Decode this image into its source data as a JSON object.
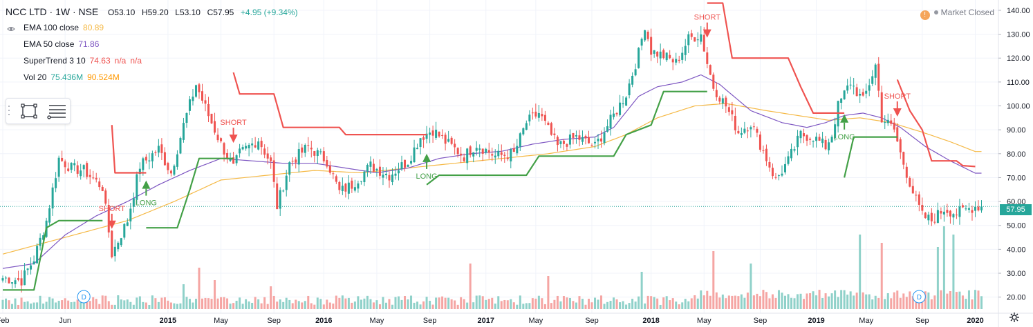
{
  "header": {
    "symbol": "NCC LTD · 1W · NSE",
    "open": "O53.10",
    "high": "H59.20",
    "low": "L53.10",
    "close": "C57.95",
    "change": "+4.95 (+9.34%)"
  },
  "legend": {
    "ema100": {
      "label": "EMA 100 close",
      "value": "80.89",
      "color": "#f5b946"
    },
    "ema50": {
      "label": "EMA 50 close",
      "value": "71.86",
      "color": "#7e57c2"
    },
    "supertrend": {
      "label": "SuperTrend 3 10",
      "value": "74.63",
      "v2": "n/a",
      "v3": "n/a",
      "color": "#ef5350"
    },
    "vol": {
      "label": "Vol 20",
      "value": "75.436M",
      "value2": "90.524M",
      "color1": "#26a69a",
      "color2": "#ff9800"
    }
  },
  "market_status": "Market Closed",
  "last_price_label": "57.95",
  "colors": {
    "up": "#26a69a",
    "down": "#ef5350",
    "vol_up": "#8fd1c9",
    "vol_down": "#f5a5a3",
    "long": "#43a047",
    "short": "#ef5350",
    "grid": "#f0f3fa"
  },
  "icons": [
    "eye-icon",
    "warning-icon",
    "rectangle-tool-icon",
    "fib-tool-icon",
    "settings-icon",
    "dividend-marker-icon"
  ],
  "chart_data": {
    "type": "candlestick",
    "y_axis": {
      "min": 15,
      "max": 142,
      "ticks": [
        20,
        30,
        40,
        50,
        60,
        70,
        80,
        90,
        100,
        110,
        120,
        130,
        140
      ],
      "position": "right"
    },
    "x_axis": {
      "labels": [
        "Feb",
        "Jun",
        "2015",
        "May",
        "Sep",
        "2016",
        "May",
        "Sep",
        "2017",
        "May",
        "Sep",
        "2018",
        "May",
        "Sep",
        "2019",
        "May",
        "Sep",
        "2020"
      ],
      "label_positions": [
        0,
        20,
        53,
        70,
        87,
        103,
        120,
        137,
        155,
        171,
        189,
        208,
        225,
        243,
        261,
        277,
        295,
        312
      ]
    },
    "weeks": 315,
    "close_anchors": [
      [
        0,
        28
      ],
      [
        6,
        27
      ],
      [
        10,
        36
      ],
      [
        14,
        52
      ],
      [
        18,
        78
      ],
      [
        22,
        74
      ],
      [
        26,
        73
      ],
      [
        32,
        66
      ],
      [
        35,
        38
      ],
      [
        40,
        52
      ],
      [
        44,
        75
      ],
      [
        50,
        82
      ],
      [
        54,
        72
      ],
      [
        58,
        92
      ],
      [
        62,
        109
      ],
      [
        66,
        96
      ],
      [
        70,
        84
      ],
      [
        74,
        74
      ],
      [
        76,
        80
      ],
      [
        82,
        86
      ],
      [
        86,
        76
      ],
      [
        88,
        58
      ],
      [
        92,
        76
      ],
      [
        98,
        83
      ],
      [
        104,
        77
      ],
      [
        108,
        64
      ],
      [
        112,
        67
      ],
      [
        118,
        75
      ],
      [
        124,
        71
      ],
      [
        130,
        77
      ],
      [
        134,
        87
      ],
      [
        138,
        90
      ],
      [
        142,
        85
      ],
      [
        148,
        79
      ],
      [
        152,
        84
      ],
      [
        158,
        79
      ],
      [
        164,
        80
      ],
      [
        168,
        93
      ],
      [
        172,
        97
      ],
      [
        178,
        83
      ],
      [
        184,
        87
      ],
      [
        190,
        83
      ],
      [
        196,
        96
      ],
      [
        200,
        105
      ],
      [
        204,
        122
      ],
      [
        206,
        134
      ],
      [
        208,
        123
      ],
      [
        212,
        121
      ],
      [
        216,
        118
      ],
      [
        220,
        128
      ],
      [
        224,
        130
      ],
      [
        226,
        118
      ],
      [
        228,
        108
      ],
      [
        232,
        100
      ],
      [
        236,
        89
      ],
      [
        240,
        93
      ],
      [
        244,
        81
      ],
      [
        248,
        69
      ],
      [
        252,
        77
      ],
      [
        256,
        88
      ],
      [
        260,
        87
      ],
      [
        264,
        83
      ],
      [
        266,
        88
      ],
      [
        268,
        100
      ],
      [
        272,
        110
      ],
      [
        276,
        102
      ],
      [
        280,
        117
      ],
      [
        282,
        95
      ],
      [
        286,
        90
      ],
      [
        288,
        80
      ],
      [
        292,
        64
      ],
      [
        295,
        54
      ],
      [
        298,
        52
      ],
      [
        302,
        57
      ],
      [
        306,
        55
      ],
      [
        312,
        58
      ]
    ],
    "ema50_anchors": [
      [
        0,
        32
      ],
      [
        10,
        34
      ],
      [
        20,
        46
      ],
      [
        30,
        54
      ],
      [
        40,
        60
      ],
      [
        50,
        67
      ],
      [
        60,
        73
      ],
      [
        70,
        78
      ],
      [
        80,
        77
      ],
      [
        90,
        76
      ],
      [
        100,
        76
      ],
      [
        110,
        74
      ],
      [
        120,
        72
      ],
      [
        130,
        74
      ],
      [
        140,
        78
      ],
      [
        150,
        80
      ],
      [
        160,
        81
      ],
      [
        170,
        84
      ],
      [
        180,
        86
      ],
      [
        190,
        87
      ],
      [
        196,
        91
      ],
      [
        204,
        104
      ],
      [
        210,
        108
      ],
      [
        218,
        110
      ],
      [
        224,
        113
      ],
      [
        230,
        109
      ],
      [
        240,
        98
      ],
      [
        250,
        93
      ],
      [
        258,
        91
      ],
      [
        264,
        93
      ],
      [
        270,
        96
      ],
      [
        276,
        97
      ],
      [
        282,
        95
      ],
      [
        288,
        91
      ],
      [
        296,
        83
      ],
      [
        304,
        77
      ],
      [
        312,
        71.86
      ]
    ],
    "ema100_anchors": [
      [
        0,
        38
      ],
      [
        20,
        45
      ],
      [
        40,
        52
      ],
      [
        55,
        60
      ],
      [
        70,
        69
      ],
      [
        85,
        71
      ],
      [
        100,
        73
      ],
      [
        115,
        72
      ],
      [
        130,
        74
      ],
      [
        145,
        76
      ],
      [
        160,
        78
      ],
      [
        175,
        80
      ],
      [
        190,
        83
      ],
      [
        200,
        88
      ],
      [
        210,
        95
      ],
      [
        222,
        100
      ],
      [
        232,
        101
      ],
      [
        245,
        98
      ],
      [
        255,
        96
      ],
      [
        265,
        94
      ],
      [
        275,
        95
      ],
      [
        285,
        93
      ],
      [
        295,
        89
      ],
      [
        304,
        85
      ],
      [
        312,
        80.89
      ]
    ],
    "supertrend_segments": [
      {
        "dir": "up",
        "points": [
          [
            0,
            23
          ],
          [
            10,
            23
          ],
          [
            14,
            49
          ],
          [
            18,
            52
          ],
          [
            32,
            52
          ]
        ]
      },
      {
        "dir": "down",
        "points": [
          [
            35,
            92
          ],
          [
            36,
            72
          ],
          [
            46,
            72
          ]
        ]
      },
      {
        "dir": "up",
        "points": [
          [
            46,
            49
          ],
          [
            56,
            49
          ],
          [
            60,
            65
          ],
          [
            63,
            78
          ],
          [
            74,
            78
          ]
        ]
      },
      {
        "dir": "down",
        "points": [
          [
            74,
            114
          ],
          [
            76,
            105
          ],
          [
            87,
            105
          ],
          [
            90,
            91
          ],
          [
            108,
            91
          ],
          [
            110,
            88
          ],
          [
            136,
            88
          ]
        ]
      },
      {
        "dir": "up",
        "points": [
          [
            136,
            67
          ],
          [
            140,
            71
          ],
          [
            168,
            71
          ],
          [
            172,
            79
          ],
          [
            196,
            79
          ],
          [
            200,
            88
          ],
          [
            208,
            92
          ],
          [
            212,
            106
          ],
          [
            226,
            106
          ]
        ]
      },
      {
        "dir": "down",
        "points": [
          [
            226,
            143
          ],
          [
            231,
            143
          ],
          [
            234,
            120
          ],
          [
            252,
            120
          ],
          [
            256,
            108
          ],
          [
            260,
            97
          ],
          [
            270,
            97
          ]
        ]
      },
      {
        "dir": "up",
        "points": [
          [
            270,
            70
          ],
          [
            273,
            87
          ],
          [
            287,
            87
          ]
        ]
      },
      {
        "dir": "down",
        "points": [
          [
            287,
            111
          ],
          [
            291,
            98
          ],
          [
            295,
            90
          ],
          [
            298,
            77
          ],
          [
            306,
            77
          ],
          [
            308,
            75
          ],
          [
            312,
            74.63
          ]
        ]
      }
    ],
    "signals": [
      {
        "type": "short",
        "label": "SHORT",
        "week": 35
      },
      {
        "type": "long",
        "label": "LONG",
        "week": 46
      },
      {
        "type": "short",
        "label": "SHORT",
        "week": 74
      },
      {
        "type": "long",
        "label": "LONG",
        "week": 136
      },
      {
        "type": "short",
        "label": "SHORT",
        "week": 226
      },
      {
        "type": "long",
        "label": "LONG",
        "week": 270
      },
      {
        "type": "short",
        "label": "SHORT",
        "week": 287
      }
    ],
    "dividend_weeks": [
      26,
      294
    ],
    "volume_spikes": [
      [
        58,
        12
      ],
      [
        63,
        20
      ],
      [
        68,
        14
      ],
      [
        86,
        11
      ],
      [
        150,
        22
      ],
      [
        175,
        16
      ],
      [
        205,
        18
      ],
      [
        228,
        28
      ],
      [
        240,
        22
      ],
      [
        275,
        36
      ],
      [
        282,
        32
      ],
      [
        300,
        30
      ],
      [
        302,
        40
      ],
      [
        305,
        36
      ]
    ]
  }
}
